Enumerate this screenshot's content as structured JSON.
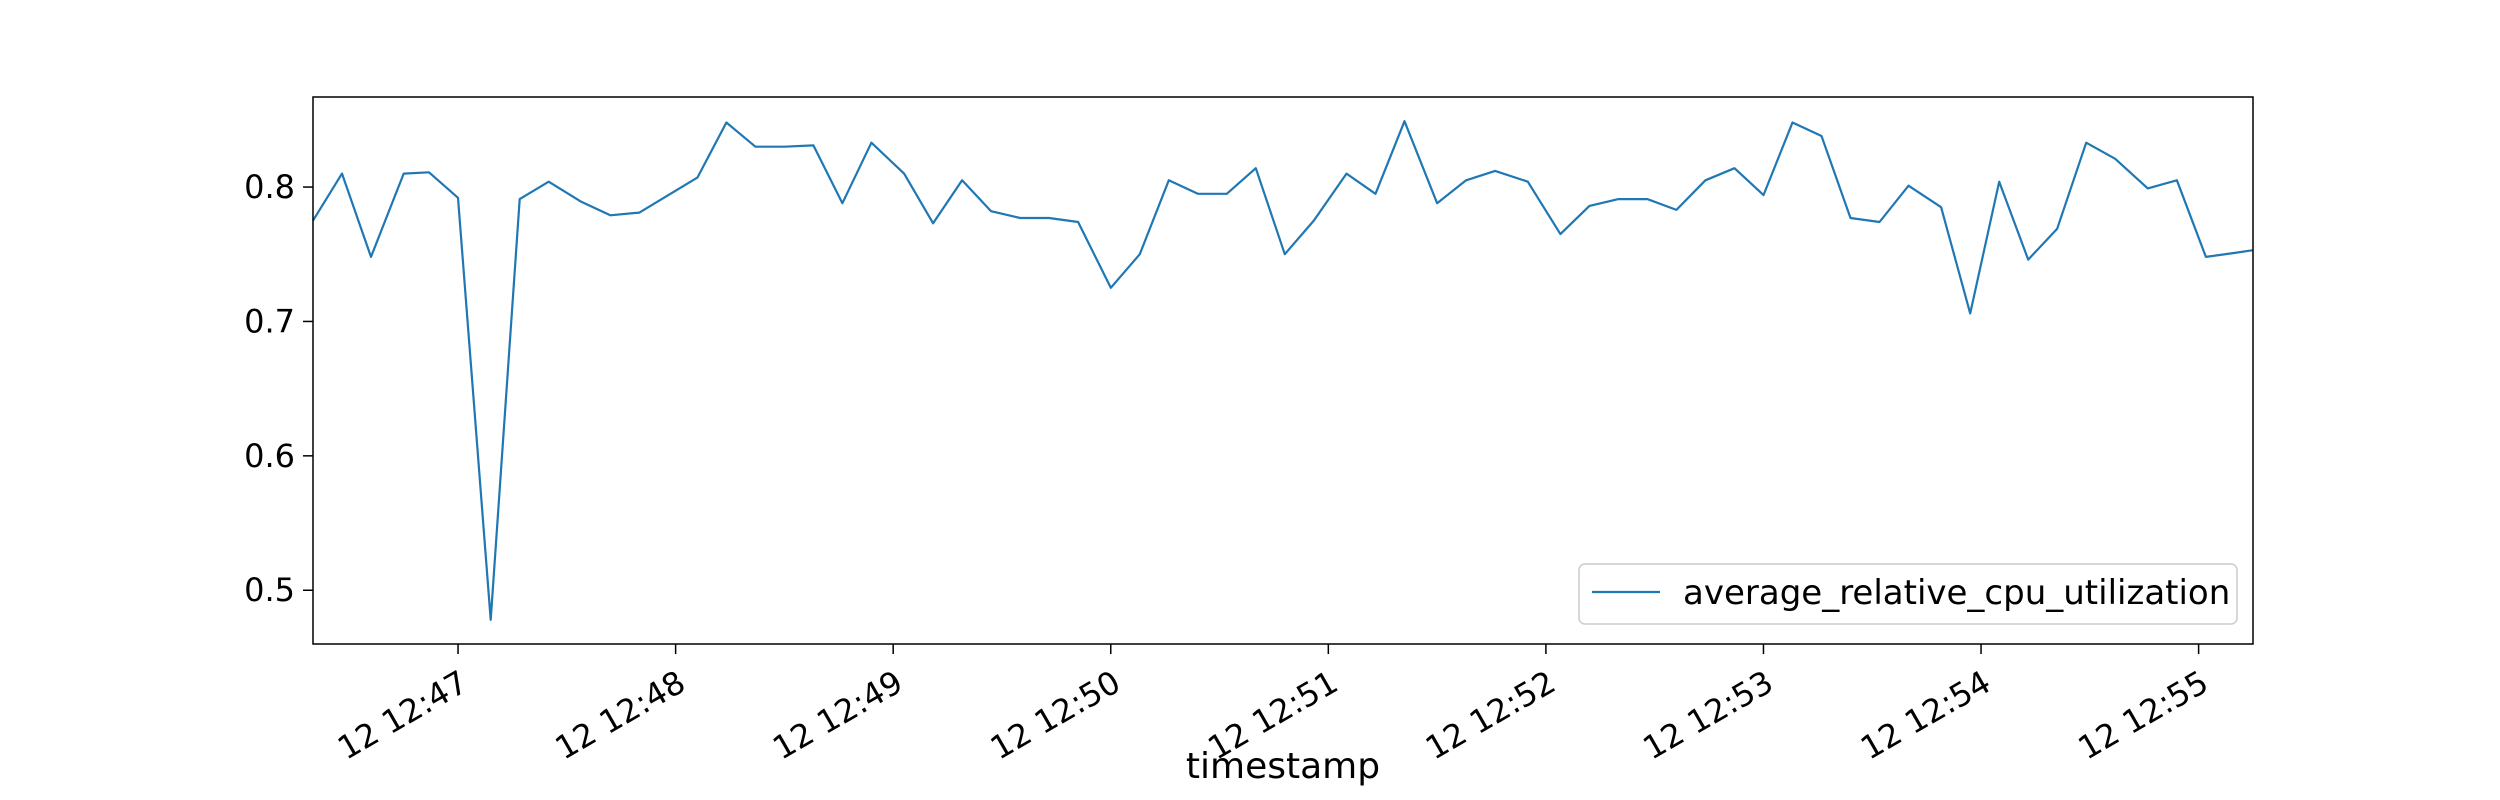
{
  "chart_data": {
    "type": "line",
    "title": "",
    "xlabel": "timestamp",
    "ylabel": "",
    "x_tick_labels": [
      "12 12:47",
      "12 12:48",
      "12 12:49",
      "12 12:50",
      "12 12:51",
      "12 12:52",
      "12 12:53",
      "12 12:54",
      "12 12:55"
    ],
    "x_tick_times": [
      "12:47:00",
      "12:48:00",
      "12:49:00",
      "12:50:00",
      "12:51:00",
      "12:52:00",
      "12:53:00",
      "12:54:00",
      "12:55:00"
    ],
    "xlim": [
      "12:46:20",
      "12:55:15"
    ],
    "y_ticks": [
      0.5,
      0.6,
      0.7,
      0.8
    ],
    "y_tick_labels": [
      "0.5",
      "0.6",
      "0.7",
      "0.8"
    ],
    "ylim": [
      0.46,
      0.867
    ],
    "grid": false,
    "legend": {
      "placement": "lower-right"
    },
    "series": [
      {
        "name": "average_relative_cpu_utilization",
        "color": "#1f77b4",
        "x": [
          "12:46:20",
          "12:46:28",
          "12:46:36",
          "12:46:45",
          "12:46:52",
          "12:47:00",
          "12:47:09",
          "12:47:17",
          "12:47:25",
          "12:47:34",
          "12:47:42",
          "12:47:50",
          "12:47:58",
          "12:48:06",
          "12:48:14",
          "12:48:22",
          "12:48:30",
          "12:48:38",
          "12:48:46",
          "12:48:54",
          "12:49:03",
          "12:49:11",
          "12:49:19",
          "12:49:27",
          "12:49:35",
          "12:49:43",
          "12:49:51",
          "12:50:00",
          "12:50:08",
          "12:50:16",
          "12:50:24",
          "12:50:32",
          "12:50:40",
          "12:50:48",
          "12:50:56",
          "12:51:05",
          "12:51:13",
          "12:51:21",
          "12:51:30",
          "12:51:38",
          "12:51:46",
          "12:51:55",
          "12:52:04",
          "12:52:12",
          "12:52:20",
          "12:52:28",
          "12:52:36",
          "12:52:44",
          "12:52:52",
          "12:53:00",
          "12:53:08",
          "12:53:16",
          "12:53:24",
          "12:53:32",
          "12:53:40",
          "12:53:49",
          "12:53:57",
          "12:54:05",
          "12:54:13",
          "12:54:21",
          "12:54:29",
          "12:54:37",
          "12:54:46",
          "12:54:54",
          "12:55:02",
          "12:55:10",
          "12:55:15"
        ],
        "values": [
          0.775,
          0.81,
          0.748,
          0.81,
          0.811,
          0.792,
          0.478,
          0.791,
          0.804,
          0.789,
          0.779,
          0.781,
          0.794,
          0.807,
          0.848,
          0.83,
          0.83,
          0.831,
          0.788,
          0.833,
          0.81,
          0.773,
          0.805,
          0.782,
          0.777,
          0.777,
          0.774,
          0.725,
          0.75,
          0.805,
          0.795,
          0.795,
          0.814,
          0.75,
          0.775,
          0.81,
          0.795,
          0.849,
          0.788,
          0.805,
          0.812,
          0.804,
          0.765,
          0.786,
          0.791,
          0.791,
          0.783,
          0.805,
          0.814,
          0.794,
          0.848,
          0.838,
          0.777,
          0.774,
          0.801,
          0.785,
          0.706,
          0.804,
          0.746,
          0.769,
          0.833,
          0.821,
          0.799,
          0.805,
          0.748,
          0.751,
          0.753
        ]
      }
    ]
  }
}
